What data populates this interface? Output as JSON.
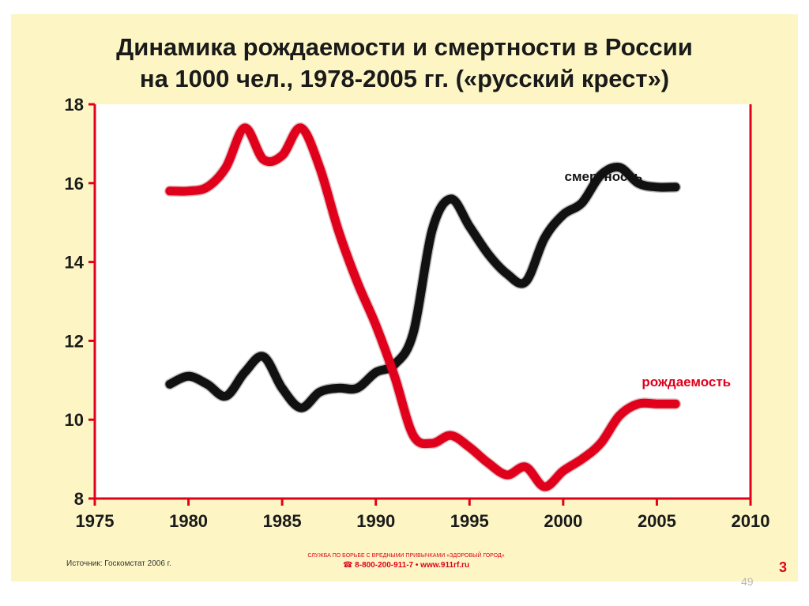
{
  "title": {
    "line1": "Динамика рождаемости и смертности в России",
    "line2": "на 1000 чел., 1978-2005 гг. («русский крест»)"
  },
  "footer": {
    "source": "Источник: Госкомстат 2006 г.",
    "service_line1": "СЛУЖБА ПО БОРЬБЕ С ВРЕДНЫМИ ПРИВЫЧКАМИ «ЗДОРОВЫЙ ГОРОД»",
    "service_line2": "☎ 8-800-200-911-7 • www.911rf.ru",
    "slide_number": "3"
  },
  "page_number": "49",
  "colors": {
    "background": "#fdf6c4",
    "axis": "#e0001b",
    "birth_rate": "#e0001b",
    "death_rate": "#111111"
  },
  "chart_data": {
    "type": "line",
    "title": "Динамика рождаемости и смертности в России на 1000 чел., 1978-2005 гг. («русский крест»)",
    "xlim": [
      1975,
      2010
    ],
    "ylim": [
      8,
      18
    ],
    "x_ticks": [
      1975,
      1980,
      1985,
      1990,
      1995,
      2000,
      2005,
      2010
    ],
    "y_ticks": [
      8,
      10,
      12,
      14,
      16,
      18
    ],
    "grid": false,
    "series": [
      {
        "name": "смертность",
        "color": "#111111",
        "x": [
          1979,
          1980,
          1981,
          1982,
          1983,
          1984,
          1985,
          1986,
          1987,
          1988,
          1989,
          1990,
          1991,
          1992,
          1993,
          1994,
          1995,
          1996,
          1997,
          1998,
          1999,
          2000,
          2001,
          2002,
          2003,
          2004,
          2005,
          2006
        ],
        "values": [
          10.9,
          11.1,
          10.9,
          10.6,
          11.2,
          11.6,
          10.8,
          10.3,
          10.7,
          10.8,
          10.8,
          11.2,
          11.4,
          12.2,
          14.8,
          15.6,
          14.9,
          14.2,
          13.7,
          13.5,
          14.6,
          15.2,
          15.5,
          16.2,
          16.4,
          16.0,
          15.9,
          15.9
        ]
      },
      {
        "name": "рождаемость",
        "color": "#e0001b",
        "x": [
          1979,
          1980,
          1981,
          1982,
          1983,
          1984,
          1985,
          1986,
          1987,
          1988,
          1989,
          1990,
          1991,
          1992,
          1993,
          1994,
          1995,
          1996,
          1997,
          1998,
          1999,
          2000,
          2001,
          2002,
          2003,
          2004,
          2005,
          2006
        ],
        "values": [
          15.8,
          15.8,
          15.9,
          16.4,
          17.4,
          16.6,
          16.7,
          17.4,
          16.4,
          14.8,
          13.5,
          12.4,
          11.1,
          9.6,
          9.4,
          9.6,
          9.3,
          8.9,
          8.6,
          8.8,
          8.3,
          8.7,
          9.0,
          9.4,
          10.1,
          10.4,
          10.4,
          10.4
        ]
      }
    ]
  }
}
